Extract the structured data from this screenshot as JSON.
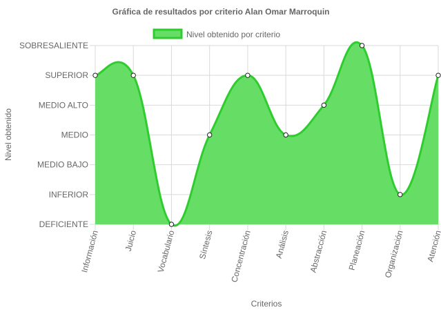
{
  "chart_data": {
    "type": "area",
    "title": "Gráfica de resultados por criterio Alan Omar Marroquin",
    "xlabel": "Criterios",
    "ylabel": "Nivel obtenido",
    "levels": [
      "DEFICIENTE",
      "INFERIOR",
      "MEDIO BAJO",
      "MEDIO",
      "MEDIO ALTO",
      "SUPERIOR",
      "SOBRESALIENTE"
    ],
    "categories": [
      "Información",
      "Juicio",
      "Vocabulario",
      "Síntesis",
      "Concentración",
      "Análisis",
      "Abstracción",
      "Planeación",
      "Organización",
      "Atención"
    ],
    "series": [
      {
        "name": "Nivel obtenido por criterio",
        "values": [
          "SUPERIOR",
          "SUPERIOR",
          "DEFICIENTE",
          "MEDIO",
          "SUPERIOR",
          "MEDIO",
          "MEDIO ALTO",
          "SOBRESALIENTE",
          "INFERIOR",
          "SUPERIOR"
        ]
      }
    ],
    "legend_position": "top",
    "grid": true,
    "colors": {
      "fill": "#66de66",
      "line": "#2ecc2e",
      "point_fill": "#ffffff",
      "point_stroke": "#222222",
      "grid": "#d9d9d9"
    }
  }
}
